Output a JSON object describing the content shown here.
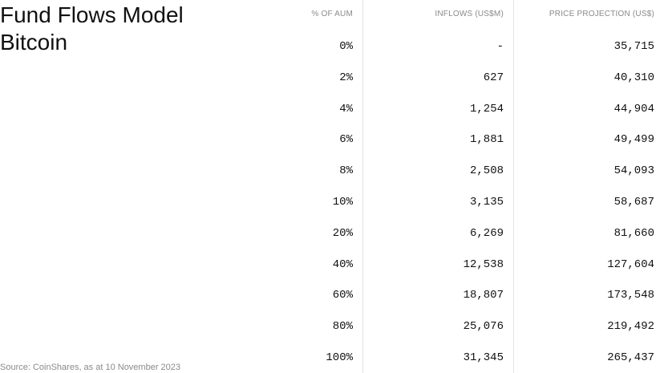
{
  "header": {
    "title": "Fund Flows Model",
    "subtitle": "Bitcoin"
  },
  "table": {
    "columns": [
      "% OF AUM",
      "INFLOWS (US$M)",
      "PRICE PROJECTION (US$)"
    ],
    "rows": [
      [
        "0%",
        "-",
        "35,715"
      ],
      [
        "2%",
        "627",
        "40,310"
      ],
      [
        "4%",
        "1,254",
        "44,904"
      ],
      [
        "6%",
        "1,881",
        "49,499"
      ],
      [
        "8%",
        "2,508",
        "54,093"
      ],
      [
        "10%",
        "3,135",
        "58,687"
      ],
      [
        "20%",
        "6,269",
        "81,660"
      ],
      [
        "40%",
        "12,538",
        "127,604"
      ],
      [
        "60%",
        "18,807",
        "173,548"
      ],
      [
        "80%",
        "25,076",
        "219,492"
      ],
      [
        "100%",
        "31,345",
        "265,437"
      ]
    ]
  },
  "footer": {
    "source": "Source: CoinShares, as at 10 November 2023"
  }
}
